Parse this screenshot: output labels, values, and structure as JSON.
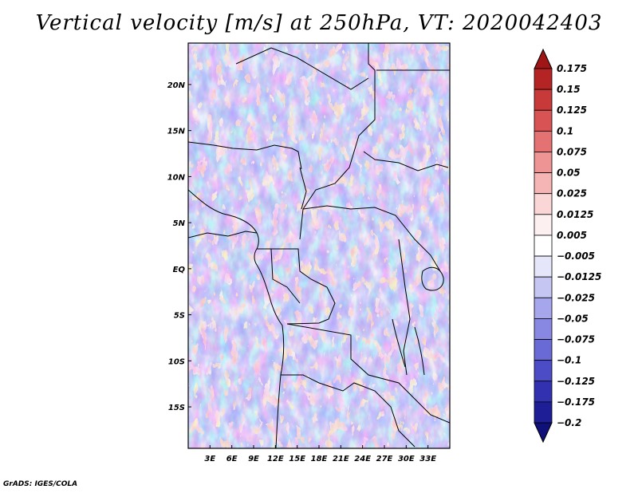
{
  "title": "Vertical velocity [m/s] at 250hPa, VT: 2020042403",
  "credit": "GrADS: IGES/COLA",
  "map": {
    "lon_range": [
      0,
      36
    ],
    "lat_range": [
      -19.5,
      24.5
    ],
    "lon_ticks": [
      "3E",
      "6E",
      "9E",
      "12E",
      "15E",
      "18E",
      "21E",
      "24E",
      "27E",
      "30E",
      "33E"
    ],
    "lon_values": [
      3,
      6,
      9,
      12,
      15,
      18,
      21,
      24,
      27,
      30,
      33
    ],
    "lat_ticks": [
      "20N",
      "15N",
      "10N",
      "5N",
      "EQ",
      "5S",
      "10S",
      "15S"
    ],
    "lat_values": [
      20,
      15,
      10,
      5,
      0,
      -5,
      -10,
      -15
    ]
  },
  "colorbar": {
    "labels": [
      "0.175",
      "0.15",
      "0.125",
      "0.1",
      "0.075",
      "0.05",
      "0.025",
      "0.0125",
      "0.005",
      "-0.005",
      "-0.0125",
      "-0.025",
      "-0.05",
      "-0.075",
      "-0.1",
      "-0.125",
      "-0.175",
      "-0.2"
    ],
    "colors": [
      "#a01515",
      "#b52424",
      "#c83a3a",
      "#d85454",
      "#e57272",
      "#ee9494",
      "#f5b5b5",
      "#fad6d6",
      "#fdf0f0",
      "#ffffff",
      "#e6e6fa",
      "#c6c6f2",
      "#a6a6ec",
      "#8888e2",
      "#6a6ad6",
      "#4c4cc6",
      "#3232b0",
      "#1e1e96",
      "#10107a"
    ]
  }
}
